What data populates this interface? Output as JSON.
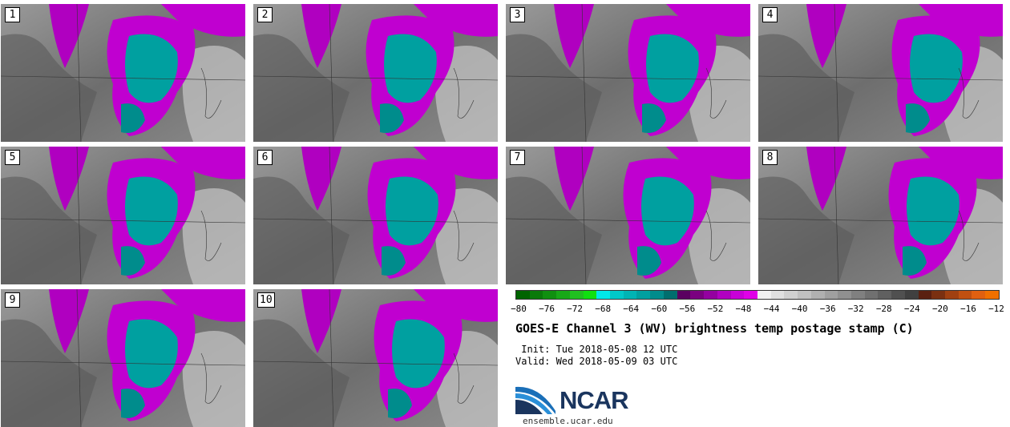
{
  "panels": [
    {
      "label": "1"
    },
    {
      "label": "2"
    },
    {
      "label": "3"
    },
    {
      "label": "4"
    },
    {
      "label": "5"
    },
    {
      "label": "6"
    },
    {
      "label": "7"
    },
    {
      "label": "8"
    },
    {
      "label": "9"
    },
    {
      "label": "10"
    }
  ],
  "colorbar": {
    "ticks": [
      "−80",
      "−76",
      "−72",
      "−68",
      "−64",
      "−60",
      "−56",
      "−52",
      "−48",
      "−44",
      "−40",
      "−36",
      "−32",
      "−28",
      "−24",
      "−20",
      "−16",
      "−12"
    ],
    "colors": [
      "#006400",
      "#0a7a0a",
      "#109010",
      "#18a818",
      "#20c020",
      "#10e010",
      "#00e8e8",
      "#00c8c8",
      "#00b4b4",
      "#00a0a0",
      "#008c8c",
      "#006e6e",
      "#5a0060",
      "#7a0080",
      "#9400a0",
      "#b000c0",
      "#c800d8",
      "#e000e8",
      "#f0f0f0",
      "#e0e0e0",
      "#d0d0d0",
      "#c0c0c0",
      "#b0b0b0",
      "#a0a0a0",
      "#909090",
      "#808080",
      "#707070",
      "#606060",
      "#505050",
      "#404040",
      "#5a2010",
      "#7a3010",
      "#a04010",
      "#c05010",
      "#e06010",
      "#f07000"
    ]
  },
  "title": "GOES-E Channel 3 (WV) brightness temp postage stamp (C)",
  "init": " Init: Tue 2018-05-08 12 UTC",
  "valid": "Valid: Wed 2018-05-09 03 UTC",
  "logo": {
    "text": "NCAR",
    "url": "ensemble.ucar.edu"
  }
}
